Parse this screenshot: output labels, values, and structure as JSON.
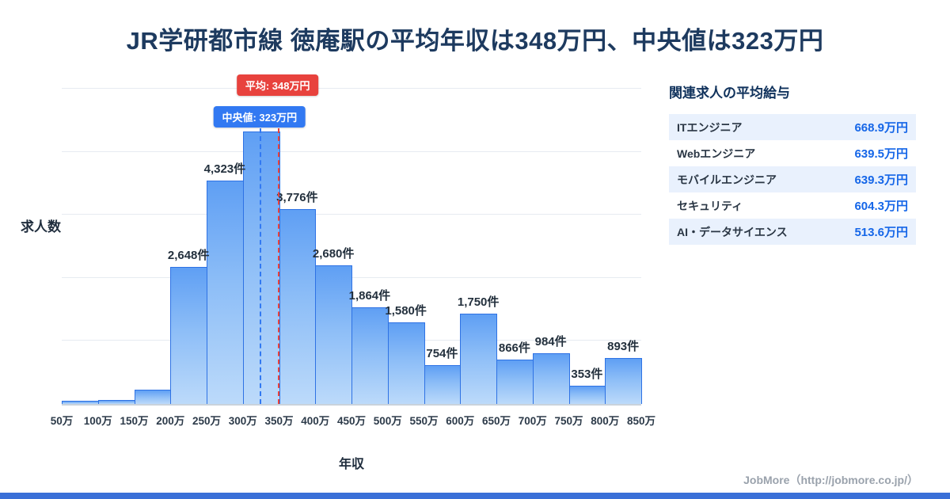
{
  "title": "JR学研都市線 徳庵駅の平均年収は348万円、中央値は323万円",
  "colors": {
    "title": "#1d3a5f",
    "bar_border": "#2e72e4",
    "mean_badge": "#e8423d",
    "median_badge": "#3279f2",
    "salary_value": "#1566e8",
    "bottom_strip": "#3a70d8"
  },
  "chart_data": {
    "type": "bar",
    "title": "",
    "xlabel": "年収",
    "ylabel": "求人数",
    "categories": [
      "50万",
      "100万",
      "150万",
      "200万",
      "250万",
      "300万",
      "350万",
      "400万",
      "450万",
      "500万",
      "550万",
      "600万",
      "650万",
      "700万",
      "750万",
      "800万",
      "850万"
    ],
    "values": [
      55,
      70,
      270,
      2648,
      4323,
      5280,
      3776,
      2680,
      1864,
      1580,
      754,
      1750,
      866,
      984,
      353,
      893
    ],
    "bar_labels": [
      "",
      "",
      "",
      "2,648件",
      "4,323件",
      "",
      "3,776件",
      "2,680件",
      "1,864件",
      "1,580件",
      "754件",
      "1,750件",
      "866件",
      "984件",
      "353件",
      "893件"
    ],
    "ylim": [
      0,
      6100
    ],
    "x_range": [
      50,
      850
    ],
    "grid": true,
    "legend": "none",
    "annotations": {
      "mean": {
        "label": "平均: 348万円",
        "value": 348,
        "color": "#e8423d"
      },
      "median": {
        "label": "中央値: 323万円",
        "value": 323,
        "color": "#3279f2"
      }
    }
  },
  "related_jobs": {
    "heading": "関連求人の平均給与",
    "items": [
      {
        "label": "ITエンジニア",
        "value": "668.9万円"
      },
      {
        "label": "Webエンジニア",
        "value": "639.5万円"
      },
      {
        "label": "モバイルエンジニア",
        "value": "639.3万円"
      },
      {
        "label": "セキュリティ",
        "value": "604.3万円"
      },
      {
        "label": "AI・データサイエンス",
        "value": "513.6万円"
      }
    ]
  },
  "footer": {
    "credit": "JobMore（http://jobmore.co.jp/）"
  }
}
